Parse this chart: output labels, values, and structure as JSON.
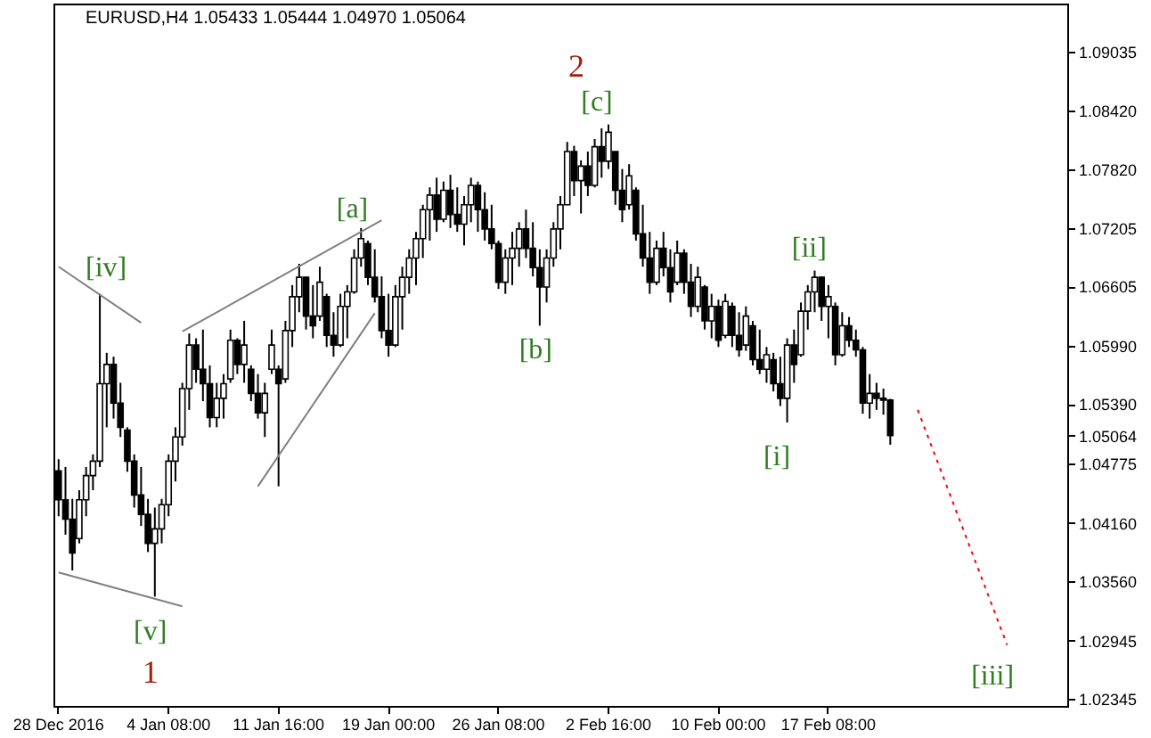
{
  "chart_data": {
    "type": "candlestick",
    "title": "EURUSD,H4  1.05433 1.05444 1.04970 1.05064",
    "color": "#000000",
    "categories": [
      "28 Dec 2016",
      null,
      null,
      null,
      null,
      null,
      null,
      null,
      null,
      null,
      null,
      null,
      null,
      null,
      null,
      null,
      "4 Jan 08:00",
      null,
      null,
      null,
      null,
      null,
      null,
      null,
      null,
      null,
      null,
      null,
      null,
      null,
      null,
      null,
      "11 Jan 16:00",
      null,
      null,
      null,
      null,
      null,
      null,
      null,
      null,
      null,
      null,
      null,
      null,
      null,
      null,
      null,
      "19 Jan 00:00",
      null,
      null,
      null,
      null,
      null,
      null,
      null,
      null,
      null,
      null,
      null,
      null,
      null,
      null,
      null,
      "26 Jan 08:00",
      null,
      null,
      null,
      null,
      null,
      null,
      null,
      null,
      null,
      null,
      null,
      null,
      null,
      null,
      null,
      "2 Feb 16:00",
      null,
      null,
      null,
      null,
      null,
      null,
      null,
      null,
      null,
      null,
      null,
      null,
      null,
      null,
      null,
      "10 Feb 00:00",
      null,
      null,
      null,
      null,
      null,
      null,
      null,
      null,
      null,
      null,
      null,
      null,
      null,
      null,
      null,
      "17 Feb 08:00",
      null,
      null,
      null,
      null,
      null,
      null,
      null,
      null,
      null,
      null,
      null,
      null,
      null,
      null,
      null,
      null,
      null,
      null,
      null,
      null,
      null,
      null,
      null,
      null,
      null,
      null,
      null,
      null,
      null,
      null,
      null,
      null,
      null,
      null
    ],
    "ohlc": [
      [
        1.047,
        1.0482,
        1.0423,
        1.044
      ],
      [
        1.044,
        1.0474,
        1.0404,
        1.042
      ],
      [
        1.042,
        1.0441,
        1.0367,
        1.0385
      ],
      [
        1.04,
        1.045,
        1.0395,
        1.044
      ],
      [
        1.044,
        1.0474,
        1.0423,
        1.0465
      ],
      [
        1.0465,
        1.0487,
        1.045,
        1.048
      ],
      [
        1.048,
        1.0653,
        1.0474,
        1.056
      ],
      [
        1.056,
        1.0592,
        1.0515,
        1.058
      ],
      [
        1.058,
        1.0588,
        1.0524,
        1.054
      ],
      [
        1.054,
        1.0561,
        1.0505,
        1.0515
      ],
      [
        1.0512,
        1.0515,
        1.0469,
        1.048
      ],
      [
        1.048,
        1.0487,
        1.0432,
        1.0445
      ],
      [
        1.0445,
        1.0474,
        1.0413,
        1.0425
      ],
      [
        1.0425,
        1.0441,
        1.0386,
        1.0395
      ],
      [
        1.0395,
        1.0432,
        1.034,
        1.041
      ],
      [
        1.041,
        1.0441,
        1.0395,
        1.0435
      ],
      [
        1.0435,
        1.0487,
        1.0423,
        1.048
      ],
      [
        1.048,
        1.0515,
        1.0459,
        1.0505
      ],
      [
        1.0505,
        1.0561,
        1.0496,
        1.0555
      ],
      [
        1.0555,
        1.0612,
        1.0533,
        1.06
      ],
      [
        1.06,
        1.0607,
        1.0561,
        1.0575
      ],
      [
        1.0575,
        1.0616,
        1.0542,
        1.056
      ],
      [
        1.056,
        1.0579,
        1.0515,
        1.0525
      ],
      [
        1.0525,
        1.0561,
        1.0515,
        1.0545
      ],
      [
        1.0545,
        1.057,
        1.0524,
        1.056
      ],
      [
        1.0565,
        1.0616,
        1.0561,
        1.0605
      ],
      [
        1.0605,
        1.0607,
        1.057,
        1.058
      ],
      [
        1.058,
        1.0625,
        1.0561,
        1.06
      ],
      [
        1.0575,
        1.0579,
        1.0542,
        1.055
      ],
      [
        1.055,
        1.057,
        1.0524,
        1.053
      ],
      [
        1.053,
        1.0561,
        1.0505,
        1.055
      ],
      [
        1.0575,
        1.0616,
        1.057,
        1.06
      ],
      [
        1.0575,
        1.0579,
        1.0454,
        1.056
      ],
      [
        1.0565,
        1.0625,
        1.0561,
        1.0615
      ],
      [
        1.0615,
        1.0662,
        1.0598,
        1.065
      ],
      [
        1.065,
        1.0684,
        1.0634,
        1.067
      ],
      [
        1.067,
        1.0671,
        1.0616,
        1.063
      ],
      [
        1.063,
        1.0662,
        1.0607,
        1.062
      ],
      [
        1.063,
        1.0681,
        1.0625,
        1.0665
      ],
      [
        1.065,
        1.0653,
        1.0598,
        1.061
      ],
      [
        1.061,
        1.0634,
        1.0588,
        1.06
      ],
      [
        1.06,
        1.0653,
        1.0598,
        1.064
      ],
      [
        1.064,
        1.0662,
        1.0607,
        1.0655
      ],
      [
        1.0655,
        1.0699,
        1.0653,
        1.069
      ],
      [
        1.069,
        1.0721,
        1.0681,
        1.071
      ],
      [
        1.0705,
        1.0708,
        1.0662,
        1.067
      ],
      [
        1.067,
        1.0699,
        1.0644,
        1.065
      ],
      [
        1.065,
        1.0671,
        1.0607,
        1.0615
      ],
      [
        1.0615,
        1.0653,
        1.0588,
        1.06
      ],
      [
        1.06,
        1.0662,
        1.0598,
        1.065
      ],
      [
        1.065,
        1.0681,
        1.0616,
        1.067
      ],
      [
        1.067,
        1.0699,
        1.0653,
        1.069
      ],
      [
        1.069,
        1.0717,
        1.0662,
        1.071
      ],
      [
        1.071,
        1.0745,
        1.069,
        1.074
      ],
      [
        1.074,
        1.0763,
        1.0708,
        1.0755
      ],
      [
        1.0755,
        1.0773,
        1.0717,
        1.073
      ],
      [
        1.073,
        1.0769,
        1.0727,
        1.076
      ],
      [
        1.076,
        1.0776,
        1.0721,
        1.0735
      ],
      [
        1.0735,
        1.0763,
        1.0717,
        1.0725
      ],
      [
        1.0725,
        1.0754,
        1.0703,
        1.0745
      ],
      [
        1.0745,
        1.0773,
        1.0727,
        1.0765
      ],
      [
        1.0765,
        1.0769,
        1.0717,
        1.074
      ],
      [
        1.074,
        1.0758,
        1.0708,
        1.072
      ],
      [
        1.072,
        1.0745,
        1.0699,
        1.0705
      ],
      [
        1.0705,
        1.0708,
        1.0658,
        1.0665
      ],
      [
        1.0665,
        1.0699,
        1.0653,
        1.069
      ],
      [
        1.069,
        1.0717,
        1.0662,
        1.07
      ],
      [
        1.07,
        1.0727,
        1.0681,
        1.072
      ],
      [
        1.072,
        1.074,
        1.069,
        1.07
      ],
      [
        1.07,
        1.0727,
        1.0671,
        1.068
      ],
      [
        1.068,
        1.0699,
        1.062,
        1.066
      ],
      [
        1.066,
        1.0699,
        1.0644,
        1.069
      ],
      [
        1.069,
        1.0727,
        1.0681,
        1.072
      ],
      [
        1.072,
        1.0754,
        1.0699,
        1.0745
      ],
      [
        1.0745,
        1.081,
        1.0745,
        1.08
      ],
      [
        1.08,
        1.0806,
        1.0754,
        1.077
      ],
      [
        1.077,
        1.0791,
        1.0736,
        1.0785
      ],
      [
        1.0785,
        1.08,
        1.0754,
        1.0765
      ],
      [
        1.0765,
        1.0813,
        1.0763,
        1.0805
      ],
      [
        1.0805,
        1.0824,
        1.0773,
        1.079
      ],
      [
        1.079,
        1.0828,
        1.0782,
        1.082
      ],
      [
        1.08,
        1.08,
        1.0745,
        1.076
      ],
      [
        1.076,
        1.0782,
        1.0727,
        1.074
      ],
      [
        1.0745,
        1.0787,
        1.074,
        1.0775
      ],
      [
        1.076,
        1.0763,
        1.0708,
        1.0715
      ],
      [
        1.0715,
        1.0745,
        1.0681,
        1.069
      ],
      [
        1.069,
        1.0717,
        1.0653,
        1.0665
      ],
      [
        1.0665,
        1.0708,
        1.0662,
        1.07
      ],
      [
        1.07,
        1.0717,
        1.0671,
        1.068
      ],
      [
        1.068,
        1.0699,
        1.0644,
        1.0655
      ],
      [
        1.0665,
        1.0708,
        1.0662,
        1.0695
      ],
      [
        1.0695,
        1.0699,
        1.0653,
        1.0665
      ],
      [
        1.0665,
        1.0684,
        1.0629,
        1.064
      ],
      [
        1.064,
        1.0681,
        1.0634,
        1.067
      ],
      [
        1.066,
        1.0662,
        1.0616,
        1.0625
      ],
      [
        1.0625,
        1.0653,
        1.0607,
        1.064
      ],
      [
        1.064,
        1.0647,
        1.0598,
        1.0605
      ],
      [
        1.061,
        1.0653,
        1.0607,
        1.0645
      ],
      [
        1.064,
        1.0644,
        1.0598,
        1.061
      ],
      [
        1.061,
        1.0634,
        1.0588,
        1.0595
      ],
      [
        1.06,
        1.064,
        1.0594,
        1.063
      ],
      [
        1.062,
        1.0625,
        1.0579,
        1.0585
      ],
      [
        1.0585,
        1.0616,
        1.057,
        1.0575
      ],
      [
        1.0575,
        1.0598,
        1.0561,
        1.059
      ],
      [
        1.0585,
        1.0592,
        1.0552,
        1.056
      ],
      [
        1.056,
        1.0588,
        1.0537,
        1.0545
      ],
      [
        1.0545,
        1.0607,
        1.052,
        1.06
      ],
      [
        1.06,
        1.0616,
        1.0561,
        1.058
      ],
      [
        1.059,
        1.0644,
        1.0588,
        1.0635
      ],
      [
        1.0635,
        1.0662,
        1.0616,
        1.0655
      ],
      [
        1.0655,
        1.0677,
        1.0634,
        1.067
      ],
      [
        1.067,
        1.0671,
        1.0625,
        1.064
      ],
      [
        1.064,
        1.0662,
        1.0607,
        1.065
      ],
      [
        1.064,
        1.0644,
        1.0579,
        1.059
      ],
      [
        1.059,
        1.0634,
        1.0588,
        1.062
      ],
      [
        1.062,
        1.0629,
        1.0598,
        1.0605
      ],
      [
        1.0605,
        1.0616,
        1.0588,
        1.0595
      ],
      [
        1.0595,
        1.0598,
        1.0529,
        1.054
      ],
      [
        1.054,
        1.057,
        1.0524,
        1.055
      ],
      [
        1.055,
        1.0561,
        1.0533,
        1.0545
      ],
      [
        1.0545,
        1.0555,
        1.0528,
        1.0543
      ],
      [
        1.05433,
        1.05444,
        1.0497,
        1.05064
      ],
      null,
      null,
      null,
      null,
      null,
      null,
      null,
      null,
      null,
      null,
      null,
      null,
      null,
      null,
      null,
      null,
      null,
      null,
      null,
      null,
      null,
      null,
      null,
      null,
      null
    ],
    "series": [
      {
        "type": "line",
        "color": "#808080",
        "line_style": "solid",
        "values": [
          1.0681,
          null,
          null,
          null,
          null,
          null,
          null,
          null,
          null,
          null,
          null,
          null,
          1.0623,
          null,
          null,
          null,
          null,
          null,
          null,
          null,
          null,
          null,
          null,
          null,
          null,
          null,
          null,
          null,
          null,
          null,
          null,
          null,
          null,
          null,
          null,
          null,
          null,
          null,
          null,
          null,
          null,
          null,
          null,
          null,
          null,
          null,
          null,
          null,
          null,
          null,
          null,
          null,
          null,
          null,
          null,
          null,
          null,
          null,
          null,
          null,
          null,
          null,
          null,
          null,
          null,
          null,
          null,
          null,
          null,
          null,
          null,
          null,
          null,
          null,
          null,
          null,
          null,
          null,
          null,
          null,
          null,
          null,
          null,
          null,
          null,
          null,
          null,
          null,
          null,
          null,
          null,
          null,
          null,
          null,
          null,
          null,
          null,
          null,
          null,
          null,
          null,
          null,
          null,
          null,
          null,
          null,
          null,
          null,
          null,
          null,
          null,
          null,
          null,
          null,
          null,
          null,
          null,
          null,
          null,
          null,
          null,
          null,
          null,
          null,
          null,
          null,
          null,
          null,
          null,
          null,
          null,
          null,
          null,
          null,
          null,
          null,
          null,
          null,
          null,
          null,
          null,
          null,
          null,
          null,
          null,
          null,
          null
        ]
      },
      {
        "type": "line",
        "color": "#808080",
        "line_style": "solid",
        "values": [
          1.0365,
          null,
          null,
          null,
          null,
          null,
          null,
          null,
          null,
          null,
          null,
          null,
          null,
          null,
          null,
          null,
          null,
          null,
          1.033,
          null,
          null,
          null,
          null,
          null,
          null,
          null,
          null,
          null,
          null,
          null,
          null,
          null,
          null,
          null,
          null,
          null,
          null,
          null,
          null,
          null,
          null,
          null,
          null,
          null,
          null,
          null,
          null,
          null,
          null,
          null,
          null,
          null,
          null,
          null,
          null,
          null,
          null,
          null,
          null,
          null,
          null,
          null,
          null,
          null,
          null,
          null,
          null,
          null,
          null,
          null,
          null,
          null,
          null,
          null,
          null,
          null,
          null,
          null,
          null,
          null,
          null,
          null,
          null,
          null,
          null,
          null,
          null,
          null,
          null,
          null,
          null,
          null,
          null,
          null,
          null,
          null,
          null,
          null,
          null,
          null,
          null,
          null,
          null,
          null,
          null,
          null,
          null,
          null,
          null,
          null,
          null,
          null,
          null,
          null,
          null,
          null,
          null,
          null,
          null,
          null,
          null,
          null,
          null,
          null,
          null,
          null,
          null,
          null,
          null,
          null,
          null,
          null,
          null,
          null,
          null,
          null,
          null,
          null,
          null,
          null,
          null,
          null,
          null,
          null,
          null,
          null,
          null
        ]
      },
      {
        "type": "line",
        "color": "#808080",
        "line_style": "solid",
        "values": [
          null,
          null,
          null,
          null,
          null,
          null,
          null,
          null,
          null,
          null,
          null,
          null,
          null,
          null,
          null,
          null,
          null,
          null,
          1.0614,
          null,
          null,
          null,
          null,
          null,
          null,
          null,
          null,
          null,
          null,
          null,
          null,
          null,
          null,
          null,
          null,
          null,
          null,
          null,
          null,
          null,
          null,
          null,
          null,
          null,
          null,
          null,
          null,
          1.0729,
          null,
          null,
          null,
          null,
          null,
          null,
          null,
          null,
          null,
          null,
          null,
          null,
          null,
          null,
          null,
          null,
          null,
          null,
          null,
          null,
          null,
          null,
          null,
          null,
          null,
          null,
          null,
          null,
          null,
          null,
          null,
          null,
          null,
          null,
          null,
          null,
          null,
          null,
          null,
          null,
          null,
          null,
          null,
          null,
          null,
          null,
          null,
          null,
          null,
          null,
          null,
          null,
          null,
          null,
          null,
          null,
          null,
          null,
          null,
          null,
          null,
          null,
          null,
          null,
          null,
          null,
          null,
          null,
          null,
          null,
          null,
          null,
          null,
          null,
          null,
          null,
          null,
          null,
          null,
          null,
          null,
          null,
          null,
          null,
          null,
          null,
          null,
          null,
          null,
          null,
          null,
          null,
          null,
          null,
          null,
          null,
          null,
          null,
          null
        ]
      },
      {
        "type": "line",
        "color": "#808080",
        "line_style": "solid",
        "values": [
          null,
          null,
          null,
          null,
          null,
          null,
          null,
          null,
          null,
          null,
          null,
          null,
          null,
          null,
          null,
          null,
          null,
          null,
          null,
          null,
          null,
          null,
          null,
          null,
          null,
          null,
          null,
          null,
          null,
          1.0454,
          null,
          null,
          null,
          null,
          null,
          null,
          null,
          null,
          null,
          null,
          null,
          null,
          null,
          null,
          null,
          null,
          1.0633,
          null,
          null,
          null,
          null,
          null,
          null,
          null,
          null,
          null,
          null,
          null,
          null,
          null,
          null,
          null,
          null,
          null,
          null,
          null,
          null,
          null,
          null,
          null,
          null,
          null,
          null,
          null,
          null,
          null,
          null,
          null,
          null,
          null,
          null,
          null,
          null,
          null,
          null,
          null,
          null,
          null,
          null,
          null,
          null,
          null,
          null,
          null,
          null,
          null,
          null,
          null,
          null,
          null,
          null,
          null,
          null,
          null,
          null,
          null,
          null,
          null,
          null,
          null,
          null,
          null,
          null,
          null,
          null,
          null,
          null,
          null,
          null,
          null,
          null,
          null,
          null,
          null,
          null,
          null,
          null,
          null,
          null,
          null,
          null,
          null,
          null,
          null,
          null,
          null,
          null,
          null,
          null,
          null,
          null,
          null,
          null,
          null,
          null,
          null,
          null
        ]
      },
      {
        "type": "line",
        "color": "#ff0000",
        "line_style": "dotted",
        "values": [
          null,
          null,
          null,
          null,
          null,
          null,
          null,
          null,
          null,
          null,
          null,
          null,
          null,
          null,
          null,
          null,
          null,
          null,
          null,
          null,
          null,
          null,
          null,
          null,
          null,
          null,
          null,
          null,
          null,
          null,
          null,
          null,
          null,
          null,
          null,
          null,
          null,
          null,
          null,
          null,
          null,
          null,
          null,
          null,
          null,
          null,
          null,
          null,
          null,
          null,
          null,
          null,
          null,
          null,
          null,
          null,
          null,
          null,
          null,
          null,
          null,
          null,
          null,
          null,
          null,
          null,
          null,
          null,
          null,
          null,
          null,
          null,
          null,
          null,
          null,
          null,
          null,
          null,
          null,
          null,
          null,
          null,
          null,
          null,
          null,
          null,
          null,
          null,
          null,
          null,
          null,
          null,
          null,
          null,
          null,
          null,
          null,
          null,
          null,
          null,
          null,
          null,
          null,
          null,
          null,
          null,
          null,
          null,
          null,
          null,
          null,
          null,
          null,
          null,
          null,
          null,
          null,
          null,
          null,
          null,
          null,
          null,
          null,
          null,
          null,
          1.0533,
          null,
          null,
          null,
          null,
          null,
          null,
          null,
          null,
          null,
          null,
          null,
          null,
          1.029,
          null,
          null,
          null,
          null,
          null,
          null,
          null,
          null
        ]
      }
    ],
    "ylim": [
      1.0227,
      1.0953
    ],
    "yticks": [
      1.02345,
      1.02945,
      {
        "value": 1.0356,
        "label": "1.03560"
      },
      {
        "value": 1.0416,
        "label": "1.04160"
      },
      1.04775,
      1.05064,
      {
        "value": 1.0539,
        "label": "1.05390"
      },
      {
        "value": 1.0599,
        "label": "1.05990"
      },
      1.06605,
      1.07205,
      {
        "value": 1.0782,
        "label": "1.07820"
      },
      {
        "value": 1.0842,
        "label": "1.08420"
      },
      1.09035
    ],
    "annotations": [
      "2",
      "[c]",
      "[a]",
      "[iv]",
      "[v]",
      "1",
      "[b]",
      "[i]",
      "[ii]",
      "[iii]"
    ]
  }
}
